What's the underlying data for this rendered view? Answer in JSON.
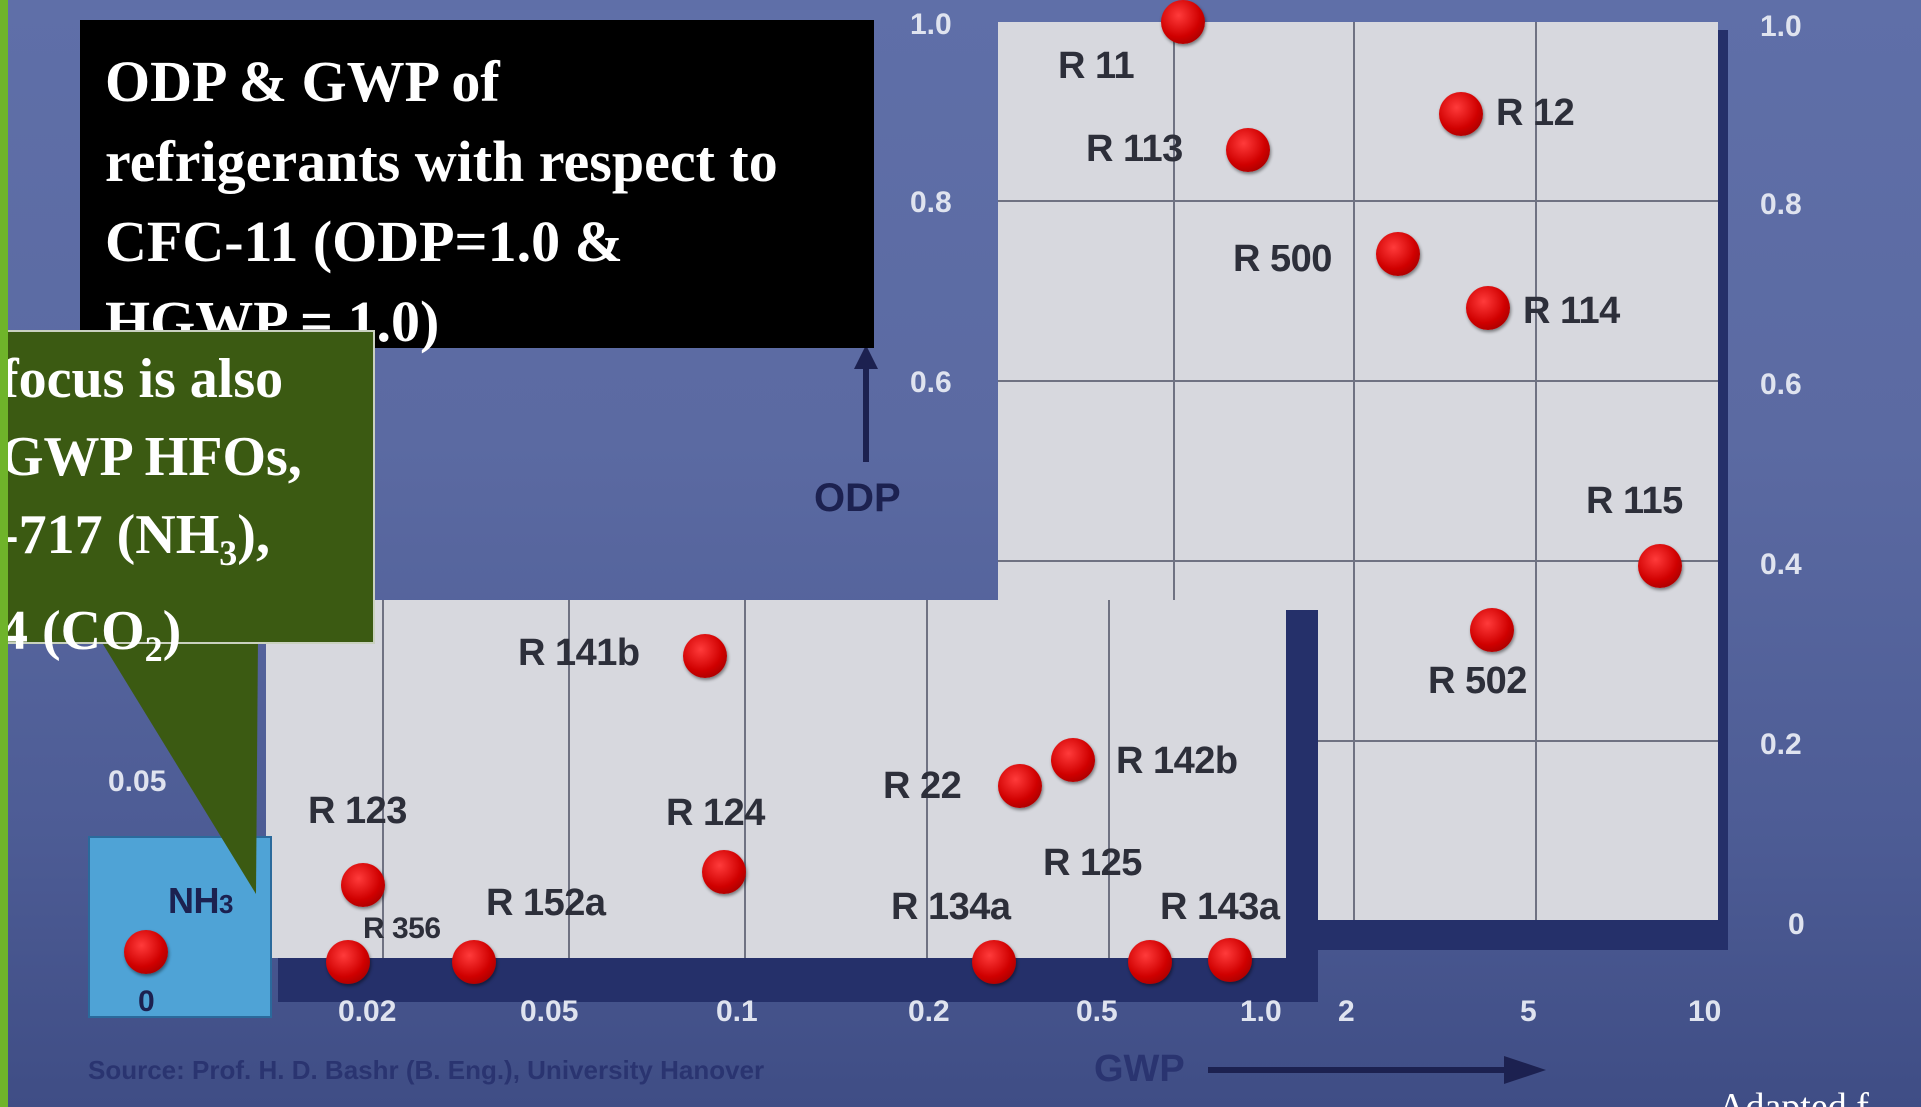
{
  "title": {
    "lines": [
      "ODP & GWP of",
      "refrigerants with respect to",
      "CFC-11 (ODP=1.0 &",
      "HGWP = 1.0)"
    ]
  },
  "callout": {
    "line1": "focus is also",
    "line2": "GWP HFOs,",
    "line3_main": "-717 (NH",
    "line3_sub": "3",
    "line3_end": "),",
    "line4_main": "4 (CO",
    "line4_sub": "2",
    "line4_end": ")"
  },
  "source": "Source: Prof. H. D. Bashr (B. Eng.), University Hanover",
  "adapted": "Adapted f",
  "chart_data": {
    "type": "scatter",
    "title": "ODP & GWP of refrigerants with respect to CFC-11 (ODP=1.0 & HGWP = 1.0)",
    "xlabel": "GWP",
    "ylabel": "ODP",
    "x_ticks": [
      "0",
      "0.02",
      "0.05",
      "0.1",
      "0.2",
      "0.5",
      "1.0",
      "2",
      "5",
      "10"
    ],
    "y_ticks_upper": [
      "1.0",
      "0.8",
      "0.6",
      "0.4",
      "0.2",
      "0"
    ],
    "y_ticks_left": [
      "1.0",
      "0.8",
      "0.6"
    ],
    "y_tick_inset": "0.05",
    "grid": true,
    "points": [
      {
        "label": "R 11",
        "gwp": 1.0,
        "odp": 1.0
      },
      {
        "label": "R 12",
        "gwp": 3.0,
        "odp": 0.9
      },
      {
        "label": "R 113",
        "gwp": 1.3,
        "odp": 0.86
      },
      {
        "label": "R 500",
        "gwp": 2.2,
        "odp": 0.74
      },
      {
        "label": "R 114",
        "gwp": 3.9,
        "odp": 0.69
      },
      {
        "label": "R 115",
        "gwp": 8.0,
        "odp": 0.41
      },
      {
        "label": "R 502",
        "gwp": 4.0,
        "odp": 0.33
      },
      {
        "label": "R 141b",
        "gwp": 0.09,
        "odp": 0.11
      },
      {
        "label": "R 142b",
        "gwp": 0.42,
        "odp": 0.065
      },
      {
        "label": "R 22",
        "gwp": 0.34,
        "odp": 0.055
      },
      {
        "label": "R 123",
        "gwp": 0.02,
        "odp": 0.02
      },
      {
        "label": "R 124",
        "gwp": 0.1,
        "odp": 0.022
      },
      {
        "label": "R 356",
        "gwp": 0.02,
        "odp": 0.0
      },
      {
        "label": "R 152a",
        "gwp": 0.03,
        "odp": 0.0
      },
      {
        "label": "R 134a",
        "gwp": 0.28,
        "odp": 0.0
      },
      {
        "label": "R 125",
        "gwp": 0.6,
        "odp": 0.0
      },
      {
        "label": "R 143a",
        "gwp": 0.75,
        "odp": 0.0
      },
      {
        "label": "NH3",
        "gwp": 0.0,
        "odp": 0.0
      }
    ]
  }
}
